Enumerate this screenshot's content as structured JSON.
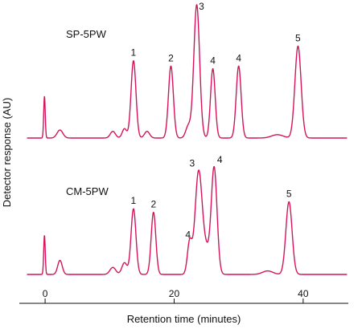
{
  "chart_data": {
    "type": "line",
    "xlabel": "Retention time (minutes)",
    "ylabel": "Detector response (AU)",
    "xlim": [
      -4,
      47
    ],
    "x_ticks": [
      0,
      20,
      40
    ],
    "x_tick_labels": [
      "0",
      "20",
      "40"
    ],
    "grid": false,
    "line_color": "#d4145a",
    "series": [
      {
        "name": "SP-5PW",
        "baseline": 0,
        "disturbances": [
          {
            "x": -0.1,
            "height": 0.31,
            "width": 0.12
          },
          {
            "x": 2.3,
            "height": 0.06,
            "width": 0.45
          },
          {
            "x": 10.5,
            "height": 0.05,
            "width": 0.4
          },
          {
            "x": 12.3,
            "height": 0.07,
            "width": 0.35
          },
          {
            "x": 15.8,
            "height": 0.05,
            "width": 0.4
          },
          {
            "x": 22.2,
            "height": 0.09,
            "width": 0.4
          },
          {
            "x": 36.0,
            "height": 0.025,
            "width": 0.9
          }
        ],
        "peaks": [
          {
            "label": "1",
            "x": 13.7,
            "height": 0.58,
            "width": 0.38
          },
          {
            "label": "2",
            "x": 19.5,
            "height": 0.54,
            "width": 0.38
          },
          {
            "label": "3",
            "x": 23.5,
            "height": 1.0,
            "width": 0.45
          },
          {
            "label": "4",
            "x": 26.0,
            "height": 0.52,
            "width": 0.36
          },
          {
            "label": "4",
            "x": 30.0,
            "height": 0.54,
            "width": 0.38
          },
          {
            "label": "5",
            "x": 39.2,
            "height": 0.69,
            "width": 0.48
          }
        ]
      },
      {
        "name": "CM-5PW",
        "baseline": 0,
        "disturbances": [
          {
            "x": -0.1,
            "height": 0.33,
            "width": 0.12
          },
          {
            "x": 2.3,
            "height": 0.12,
            "width": 0.35
          },
          {
            "x": 10.5,
            "height": 0.06,
            "width": 0.45
          },
          {
            "x": 12.3,
            "height": 0.1,
            "width": 0.4
          },
          {
            "x": 25.0,
            "height": 0.18,
            "width": 0.5
          },
          {
            "x": 34.5,
            "height": 0.03,
            "width": 0.8
          }
        ],
        "peaks": [
          {
            "label": "1",
            "x": 13.7,
            "height": 0.56,
            "width": 0.38
          },
          {
            "label": "2",
            "x": 16.8,
            "height": 0.53,
            "width": 0.36
          },
          {
            "label": "4",
            "x": 22.4,
            "height": 0.27,
            "width": 0.35
          },
          {
            "label": "3",
            "x": 23.8,
            "height": 0.88,
            "width": 0.55
          },
          {
            "label": "4",
            "x": 26.2,
            "height": 0.91,
            "width": 0.45
          },
          {
            "label": "5",
            "x": 37.8,
            "height": 0.62,
            "width": 0.48
          }
        ]
      }
    ]
  }
}
